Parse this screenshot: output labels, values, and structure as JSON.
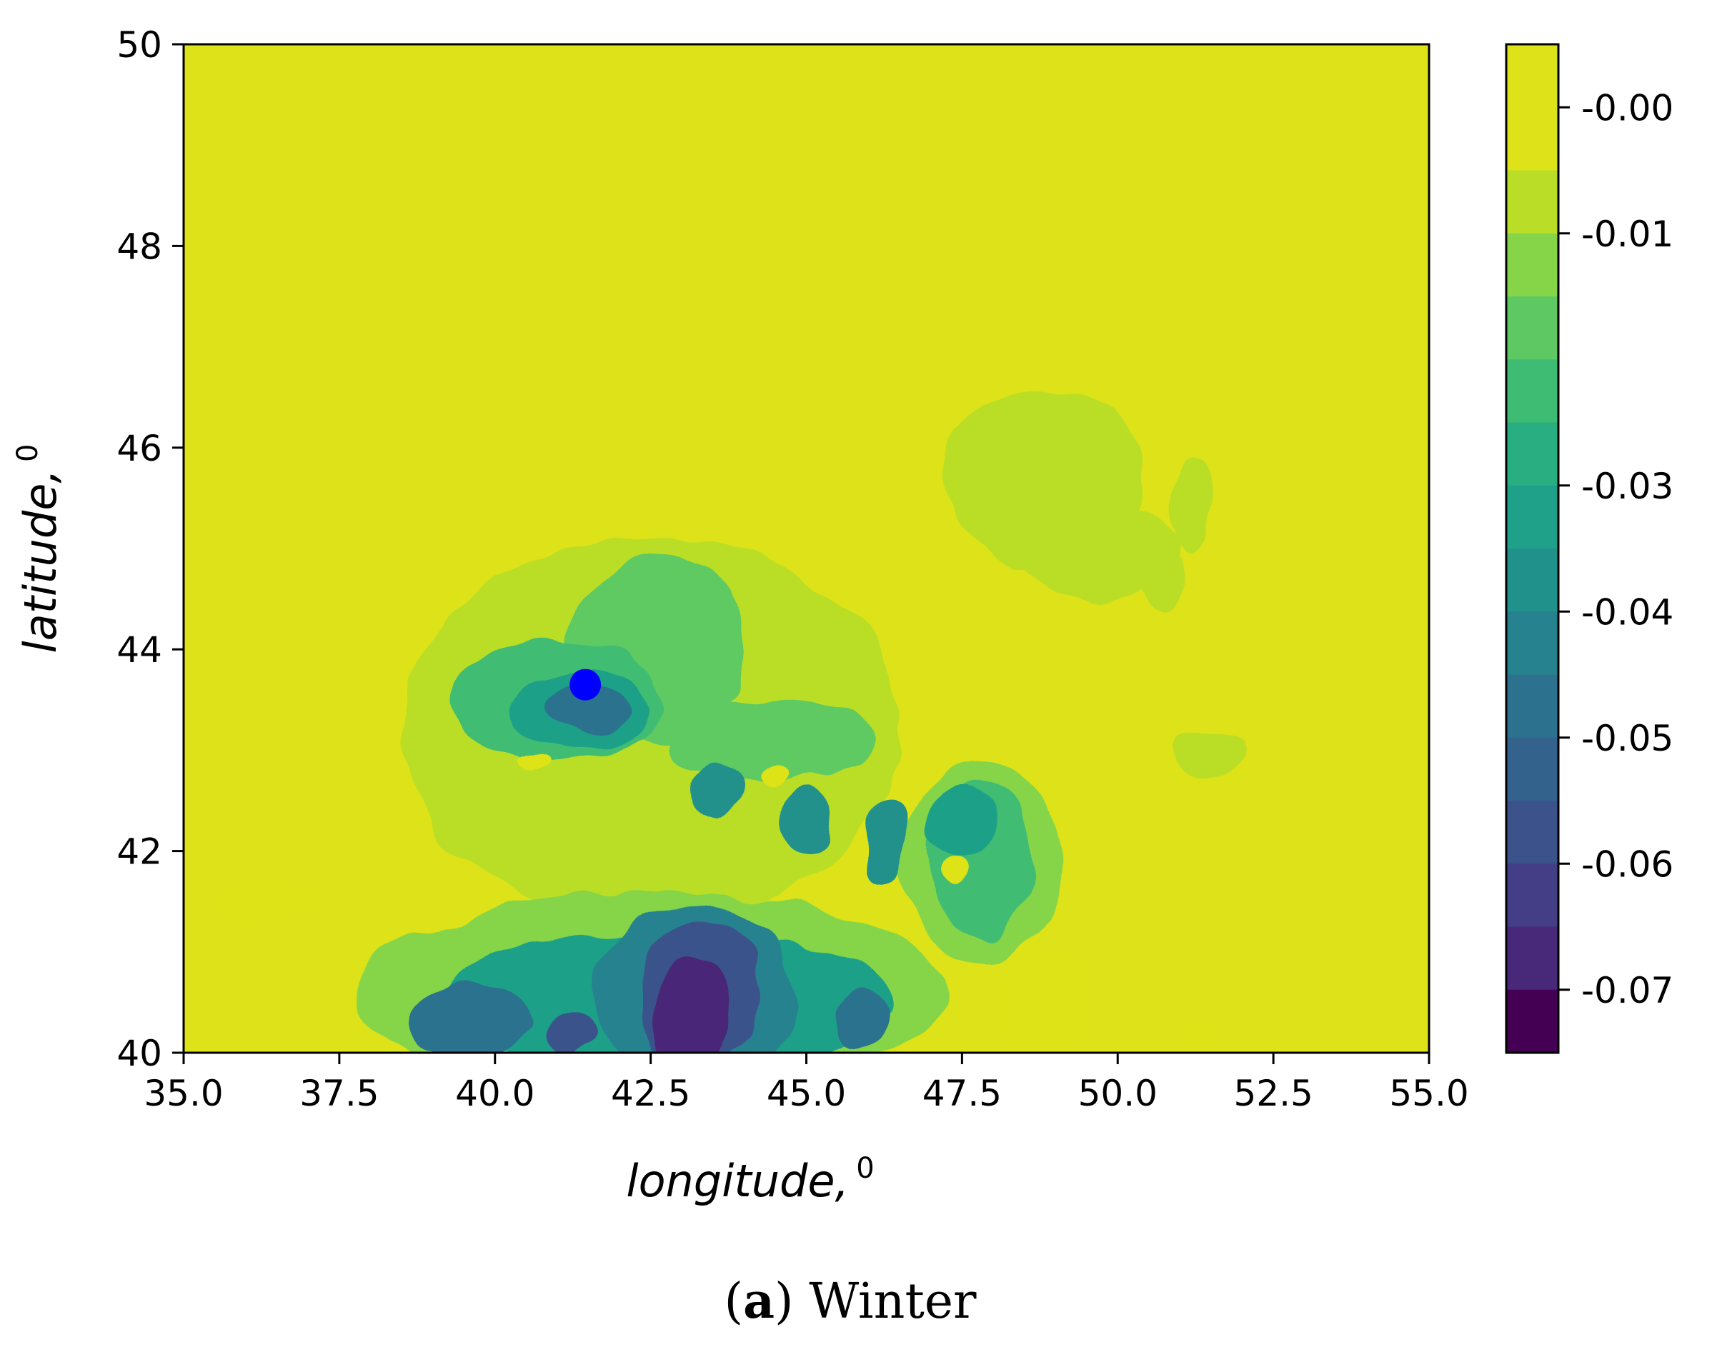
{
  "chart_data": {
    "type": "heatmap",
    "subtype": "filled-contour",
    "title": "",
    "xlabel": "longitude,",
    "xlabel_superscript": "0",
    "ylabel": "latitude,",
    "ylabel_superscript": "0",
    "xlim": [
      35.0,
      55.0
    ],
    "ylim": [
      40,
      50
    ],
    "x_ticks": [
      35.0,
      37.5,
      40.0,
      42.5,
      45.0,
      47.5,
      50.0,
      52.5,
      55.0
    ],
    "x_tick_labels": [
      "35.0",
      "37.5",
      "40.0",
      "42.5",
      "45.0",
      "47.5",
      "50.0",
      "52.5",
      "55.0"
    ],
    "y_ticks": [
      40,
      42,
      44,
      46,
      48,
      50
    ],
    "y_tick_labels": [
      "40",
      "42",
      "44",
      "46",
      "48",
      "50"
    ],
    "colormap": "viridis",
    "colorbar": {
      "range": [
        -0.075,
        0.005
      ],
      "levels": [
        0.0,
        -0.005,
        -0.01,
        -0.015,
        -0.02,
        -0.025,
        -0.03,
        -0.035,
        -0.04,
        -0.045,
        -0.05,
        -0.055,
        -0.06,
        -0.065,
        -0.07,
        -0.075
      ],
      "level_colors": [
        "#dde318",
        "#bade28",
        "#86d549",
        "#5ec962",
        "#3fbc73",
        "#28ae80",
        "#1fa088",
        "#21918c",
        "#26828e",
        "#2c728e",
        "#33638d",
        "#3b528b",
        "#433e85",
        "#482878",
        "#440154"
      ],
      "ticks": [
        -0.0,
        -0.01,
        -0.03,
        -0.04,
        -0.05,
        -0.06,
        -0.07
      ],
      "tick_labels": [
        "-0.00",
        "-0.01",
        "-0.03",
        "-0.04",
        "-0.05",
        "-0.06",
        "-0.07"
      ]
    },
    "background_value": -0.0025,
    "features": [
      {
        "kind": "blob",
        "lon": 42.5,
        "lat": 43.2,
        "rx": 4.0,
        "ry": 1.9,
        "value": -0.008
      },
      {
        "kind": "blob",
        "lon": 48.8,
        "lat": 45.7,
        "rx": 1.6,
        "ry": 0.9,
        "value": -0.008
      },
      {
        "kind": "blob",
        "lon": 49.7,
        "lat": 45.0,
        "rx": 1.3,
        "ry": 0.5,
        "value": -0.008
      },
      {
        "kind": "blob",
        "lon": 51.2,
        "lat": 45.4,
        "rx": 0.3,
        "ry": 0.5,
        "value": -0.008
      },
      {
        "kind": "blob",
        "lon": 50.7,
        "lat": 44.7,
        "rx": 0.35,
        "ry": 0.3,
        "value": -0.008
      },
      {
        "kind": "blob",
        "lon": 51.4,
        "lat": 42.95,
        "rx": 0.6,
        "ry": 0.22,
        "value": -0.008
      },
      {
        "kind": "blob",
        "lon": 47.8,
        "lat": 41.9,
        "rx": 1.3,
        "ry": 1.0,
        "value": -0.012
      },
      {
        "kind": "blob",
        "lon": 42.5,
        "lat": 40.6,
        "rx": 4.8,
        "ry": 1.0,
        "value": -0.012
      },
      {
        "kind": "blob",
        "lon": 42.6,
        "lat": 44.0,
        "rx": 1.4,
        "ry": 0.9,
        "value": -0.016
      },
      {
        "kind": "blob",
        "lon": 44.5,
        "lat": 43.1,
        "rx": 1.7,
        "ry": 0.4,
        "value": -0.016
      },
      {
        "kind": "blob",
        "lon": 47.8,
        "lat": 41.9,
        "rx": 0.8,
        "ry": 0.8,
        "value": -0.02
      },
      {
        "kind": "blob",
        "lon": 41.0,
        "lat": 43.5,
        "rx": 1.7,
        "ry": 0.6,
        "value": -0.02
      },
      {
        "kind": "blob",
        "lon": 41.4,
        "lat": 43.4,
        "rx": 1.1,
        "ry": 0.4,
        "value": -0.032
      },
      {
        "kind": "blob",
        "lon": 41.5,
        "lat": 43.4,
        "rx": 0.7,
        "ry": 0.25,
        "value": -0.045
      },
      {
        "kind": "blob",
        "lon": 43.6,
        "lat": 42.6,
        "rx": 0.35,
        "ry": 0.28,
        "value": -0.035
      },
      {
        "kind": "blob",
        "lon": 45.0,
        "lat": 42.3,
        "rx": 0.4,
        "ry": 0.32,
        "value": -0.035
      },
      {
        "kind": "blob",
        "lon": 46.3,
        "lat": 42.1,
        "rx": 0.35,
        "ry": 0.4,
        "value": -0.035
      },
      {
        "kind": "blob",
        "lon": 47.5,
        "lat": 42.3,
        "rx": 0.55,
        "ry": 0.35,
        "value": -0.03
      },
      {
        "kind": "blob",
        "lon": 42.8,
        "lat": 40.5,
        "rx": 3.6,
        "ry": 0.7,
        "value": -0.03
      },
      {
        "kind": "blob",
        "lon": 43.2,
        "lat": 40.6,
        "rx": 1.6,
        "ry": 0.9,
        "value": -0.04
      },
      {
        "kind": "blob",
        "lon": 39.6,
        "lat": 40.3,
        "rx": 1.0,
        "ry": 0.35,
        "value": -0.045
      },
      {
        "kind": "blob",
        "lon": 43.3,
        "lat": 40.6,
        "rx": 1.0,
        "ry": 0.75,
        "value": -0.055
      },
      {
        "kind": "blob",
        "lon": 43.2,
        "lat": 40.4,
        "rx": 0.65,
        "ry": 0.55,
        "value": -0.065
      },
      {
        "kind": "blob",
        "lon": 41.2,
        "lat": 40.2,
        "rx": 0.45,
        "ry": 0.2,
        "value": -0.055
      },
      {
        "kind": "blob",
        "lon": 45.9,
        "lat": 40.3,
        "rx": 0.45,
        "ry": 0.3,
        "value": -0.045
      },
      {
        "kind": "blob",
        "lon": 48.8,
        "lat": 40.5,
        "rx": 0.8,
        "ry": 0.55,
        "value": 0.002
      },
      {
        "kind": "blob",
        "lon": 51.3,
        "lat": 40.15,
        "rx": 0.3,
        "ry": 0.15,
        "value": 0.002
      },
      {
        "kind": "blob",
        "lon": 36.4,
        "lat": 41.5,
        "rx": 0.9,
        "ry": 0.2,
        "value": 0.002
      },
      {
        "kind": "blob",
        "lon": 47.4,
        "lat": 41.8,
        "rx": 0.25,
        "ry": 0.15,
        "value": 0.002
      },
      {
        "kind": "blob",
        "lon": 44.5,
        "lat": 42.75,
        "rx": 0.25,
        "ry": 0.08,
        "value": 0.002
      },
      {
        "kind": "blob",
        "lon": 40.6,
        "lat": 42.9,
        "rx": 0.3,
        "ry": 0.08,
        "value": 0.002
      }
    ],
    "marker": {
      "lon": 41.45,
      "lat": 43.65,
      "color": "#0000ff"
    },
    "caption_label": "a",
    "caption_text": "Winter"
  }
}
